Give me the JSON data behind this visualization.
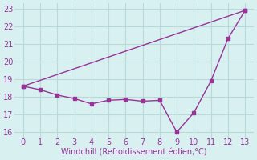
{
  "xlabel": "Windchill (Refroidissement éolien,°C)",
  "xlim": [
    -0.5,
    13.5
  ],
  "ylim": [
    15.7,
    23.3
  ],
  "yticks": [
    16,
    17,
    18,
    19,
    20,
    21,
    22,
    23
  ],
  "xticks": [
    0,
    1,
    2,
    3,
    4,
    5,
    6,
    7,
    8,
    9,
    10,
    11,
    12,
    13
  ],
  "line1_x": [
    0,
    1,
    2,
    3,
    4,
    5,
    6,
    7,
    8,
    9,
    10,
    11,
    12,
    13
  ],
  "line1_y": [
    18.6,
    18.4,
    18.1,
    17.9,
    17.6,
    17.8,
    17.85,
    17.75,
    17.8,
    16.0,
    17.1,
    18.9,
    21.3,
    22.9
  ],
  "line2_x": [
    0,
    13
  ],
  "line2_y": [
    18.6,
    22.9
  ],
  "line_color": "#993399",
  "bg_color": "#d8f0f0",
  "grid_color": "#b8dada",
  "marker": "s",
  "marker_size": 2.5,
  "linewidth": 1.0
}
